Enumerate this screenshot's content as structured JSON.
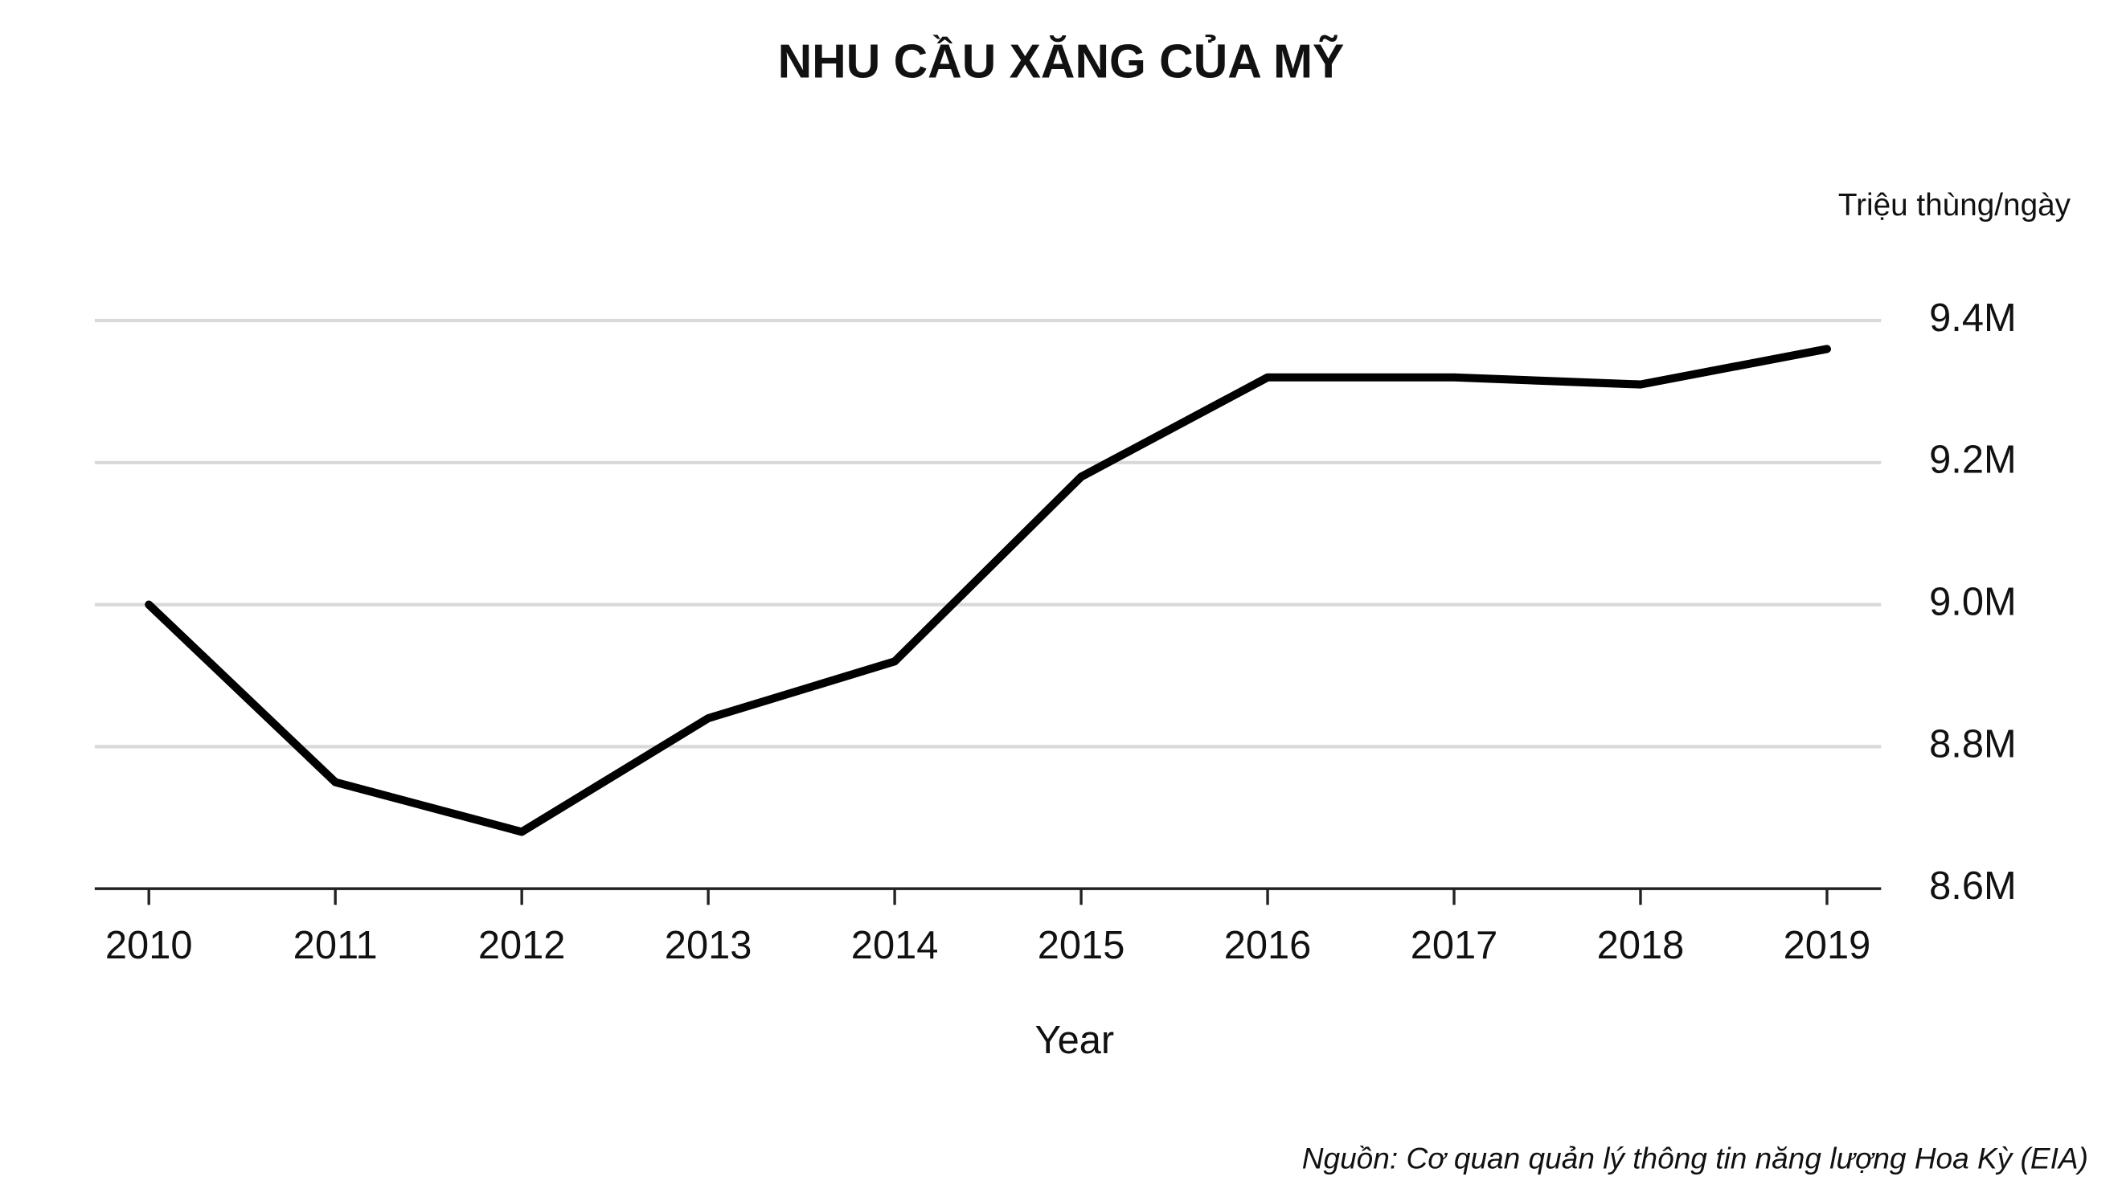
{
  "chart_data": {
    "type": "line",
    "title": "NHU CẦU XĂNG CỦA MỸ",
    "y_axis_label": "Triệu thùng/ngày",
    "x_axis_label": "Year",
    "source": "Nguồn: Cơ quan quản lý thông tin năng lượng Hoa Kỳ (EIA)",
    "categories": [
      "2010",
      "2011",
      "2012",
      "2013",
      "2014",
      "2015",
      "2016",
      "2017",
      "2018",
      "2019"
    ],
    "values": [
      9.0,
      8.75,
      8.68,
      8.84,
      8.92,
      9.18,
      9.32,
      9.32,
      9.31,
      9.36
    ],
    "color": "#000000",
    "ylim": [
      8.6,
      9.4
    ],
    "yticks": [
      {
        "value": 8.6,
        "label": "8.6M"
      },
      {
        "value": 8.8,
        "label": "8.8M"
      },
      {
        "value": 9.0,
        "label": "9.0M"
      },
      {
        "value": 9.2,
        "label": "9.2M"
      },
      {
        "value": 9.4,
        "label": "9.4M"
      }
    ],
    "grid": true
  }
}
